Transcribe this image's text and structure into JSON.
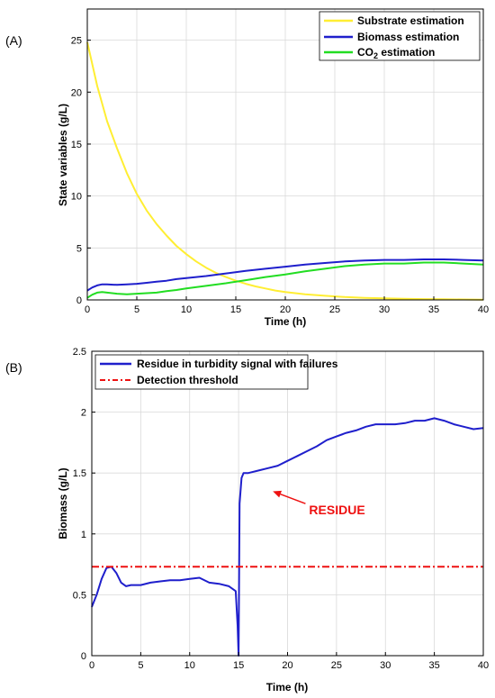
{
  "chart_data": [
    {
      "panel_label": "(A)",
      "type": "line",
      "xlabel": "Time (h)",
      "ylabel": "State variables (g/L)",
      "xlim": [
        0,
        40
      ],
      "ylim": [
        0,
        28
      ],
      "xticks": [
        0,
        5,
        10,
        15,
        20,
        25,
        30,
        35,
        40
      ],
      "yticks": [
        0,
        5,
        10,
        15,
        20,
        25
      ],
      "grid": true,
      "legend_position": "top-right",
      "series": [
        {
          "name": "Substrate estimation",
          "color": "#ffee33",
          "x": [
            0,
            1,
            2,
            3,
            4,
            5,
            6,
            7,
            8,
            9,
            10,
            11,
            12,
            13,
            14,
            15,
            16,
            17,
            18,
            19,
            20,
            22,
            24,
            26,
            28,
            30,
            32,
            34,
            36,
            38,
            40
          ],
          "y": [
            24.8,
            20.6,
            17.2,
            14.6,
            12.2,
            10.2,
            8.6,
            7.3,
            6.2,
            5.2,
            4.4,
            3.7,
            3.1,
            2.6,
            2.2,
            1.85,
            1.55,
            1.3,
            1.1,
            0.9,
            0.75,
            0.55,
            0.4,
            0.28,
            0.2,
            0.15,
            0.11,
            0.08,
            0.06,
            0.04,
            0.03
          ]
        },
        {
          "name": "Biomass estimation",
          "color": "#1f1fcc",
          "x": [
            0,
            0.5,
            1,
            1.5,
            2,
            3,
            4,
            5,
            6,
            7,
            8,
            9,
            10,
            12,
            14,
            16,
            18,
            20,
            22,
            24,
            26,
            28,
            30,
            32,
            34,
            36,
            38,
            40
          ],
          "y": [
            0.9,
            1.2,
            1.4,
            1.5,
            1.5,
            1.45,
            1.5,
            1.55,
            1.65,
            1.75,
            1.85,
            2.0,
            2.1,
            2.3,
            2.55,
            2.8,
            3.0,
            3.2,
            3.4,
            3.55,
            3.7,
            3.8,
            3.85,
            3.85,
            3.9,
            3.9,
            3.85,
            3.8
          ]
        },
        {
          "name": "CO2 estimation",
          "name_main": "CO",
          "name_sub": "2",
          "name_rest": " estimation",
          "color": "#22dd22",
          "x": [
            0,
            0.5,
            1,
            1.5,
            2,
            3,
            4,
            5,
            6,
            7,
            8,
            9,
            10,
            12,
            14,
            16,
            18,
            20,
            22,
            24,
            26,
            28,
            30,
            32,
            34,
            36,
            38,
            40
          ],
          "y": [
            0.2,
            0.5,
            0.7,
            0.75,
            0.7,
            0.6,
            0.55,
            0.6,
            0.65,
            0.7,
            0.85,
            0.95,
            1.1,
            1.35,
            1.6,
            1.9,
            2.2,
            2.45,
            2.75,
            3.0,
            3.25,
            3.4,
            3.5,
            3.5,
            3.6,
            3.6,
            3.5,
            3.4
          ]
        }
      ]
    },
    {
      "panel_label": "(B)",
      "type": "line",
      "xlabel": "Time (h)",
      "ylabel": "Biomass (g/L)",
      "xlim": [
        0,
        40
      ],
      "ylim": [
        0,
        2.5
      ],
      "xticks": [
        0,
        5,
        10,
        15,
        20,
        25,
        30,
        35,
        40
      ],
      "yticks": [
        0,
        0.5,
        1,
        1.5,
        2,
        2.5
      ],
      "grid": true,
      "legend_position": "top-left",
      "annotation": {
        "text": "RESIDUE",
        "color": "#ee1111",
        "x": 22.2,
        "y": 1.16,
        "arrow_to_x": 18.5,
        "arrow_to_y": 1.35
      },
      "series": [
        {
          "name": "Residue in turbidity signal with failures",
          "color": "#1f1fcc",
          "x": [
            0,
            0.5,
            1,
            1.5,
            2,
            2.5,
            3,
            3.5,
            4,
            5,
            6,
            7,
            8,
            9,
            10,
            11,
            12,
            13,
            14,
            14.7,
            14.9,
            15.0,
            15.1,
            15.3,
            15.5,
            16,
            17,
            18,
            19,
            20,
            21,
            22,
            23,
            24,
            25,
            26,
            27,
            28,
            29,
            30,
            31,
            32,
            33,
            34,
            35,
            36,
            37,
            38,
            39,
            40
          ],
          "y": [
            0.4,
            0.5,
            0.63,
            0.72,
            0.73,
            0.68,
            0.6,
            0.57,
            0.58,
            0.58,
            0.6,
            0.61,
            0.62,
            0.62,
            0.63,
            0.64,
            0.6,
            0.59,
            0.57,
            0.53,
            0.25,
            0.0,
            1.25,
            1.46,
            1.5,
            1.5,
            1.52,
            1.54,
            1.56,
            1.6,
            1.64,
            1.68,
            1.72,
            1.77,
            1.8,
            1.83,
            1.85,
            1.88,
            1.9,
            1.9,
            1.9,
            1.91,
            1.93,
            1.93,
            1.95,
            1.93,
            1.9,
            1.88,
            1.86,
            1.87
          ]
        },
        {
          "name": "Detection threshold",
          "color": "#ee1111",
          "dashed": true,
          "x": [
            0,
            40
          ],
          "y": [
            0.73,
            0.73
          ]
        }
      ]
    }
  ]
}
